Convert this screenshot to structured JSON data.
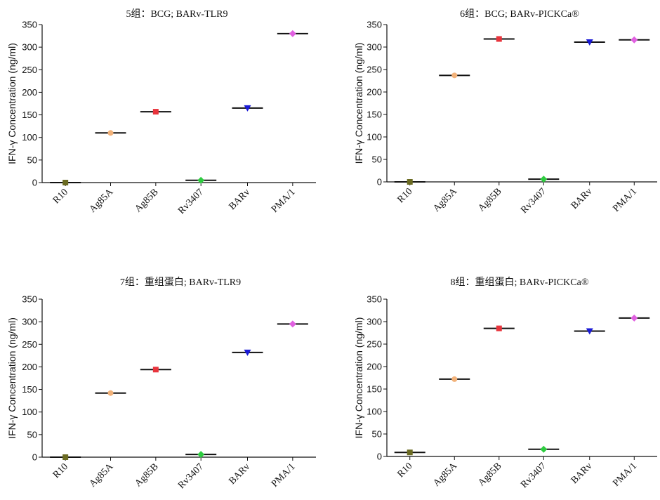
{
  "chart_data": [
    {
      "type": "scatter",
      "title": "5组：BCG; BARv-TLR9",
      "ylabel": "IFN-γ Concentration (ng/ml)",
      "ylim": [
        0,
        350
      ],
      "yticks": [
        0,
        50,
        100,
        150,
        200,
        250,
        300,
        350
      ],
      "categories": [
        "R10",
        "Ag85A",
        "Ag85B",
        "Rv3407",
        "BARv",
        "PMA/1"
      ],
      "values": [
        0,
        110,
        157,
        5,
        165,
        330
      ]
    },
    {
      "type": "scatter",
      "title": "6组：BCG; BARv-PICKCa®",
      "ylabel": "IFN-γ Concentration (ng/ml)",
      "ylim": [
        0,
        350
      ],
      "yticks": [
        0,
        50,
        100,
        150,
        200,
        250,
        300,
        350
      ],
      "categories": [
        "R10",
        "Ag85A",
        "Ag85B",
        "Rv3407",
        "BARv",
        "PMA/1"
      ],
      "values": [
        0,
        237,
        318,
        6,
        311,
        316
      ]
    },
    {
      "type": "scatter",
      "title": "7组：重组蛋白; BARv-TLR9",
      "ylabel": "IFN-γ Concentration (ng/ml)",
      "ylim": [
        0,
        350
      ],
      "yticks": [
        0,
        50,
        100,
        150,
        200,
        250,
        300,
        350
      ],
      "categories": [
        "R10",
        "Ag85A",
        "Ag85B",
        "Rv3407",
        "BARv",
        "PMA/1"
      ],
      "values": [
        0,
        142,
        194,
        6,
        232,
        295
      ]
    },
    {
      "type": "scatter",
      "title": "8组：重组蛋白; BARv-PICKCa®",
      "ylabel": "IFN-γ Concentration (ng/ml)",
      "ylim": [
        0,
        350
      ],
      "yticks": [
        0,
        50,
        100,
        150,
        200,
        250,
        300,
        350
      ],
      "categories": [
        "R10",
        "Ag85A",
        "Ag85B",
        "Rv3407",
        "BARv",
        "PMA/1"
      ],
      "values": [
        9,
        172,
        285,
        16,
        279,
        308
      ]
    }
  ],
  "marker_styles": [
    {
      "shape": "square",
      "color": "#6b6b22"
    },
    {
      "shape": "circle",
      "color": "#f2b27a"
    },
    {
      "shape": "square",
      "color": "#e8343c"
    },
    {
      "shape": "diamond",
      "color": "#2ecc40"
    },
    {
      "shape": "triangle-down",
      "color": "#1a1ad6"
    },
    {
      "shape": "diamond",
      "color": "#e060e0"
    }
  ]
}
